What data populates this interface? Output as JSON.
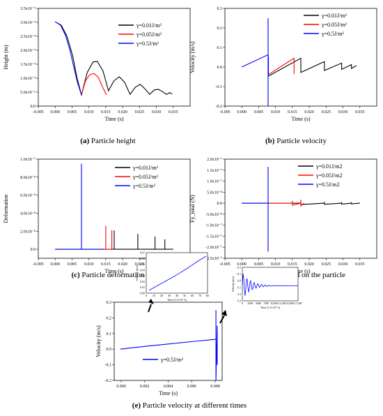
{
  "chart_data": [
    {
      "type": "line",
      "caption_letter": "(a)",
      "caption_text": " Particle height",
      "xlabel": "Time (s)",
      "ylabel": "Height (m)",
      "xlim": [
        -0.005,
        0.04
      ],
      "ylim": [
        0,
        0.00035
      ],
      "xticks": [
        "-0.005",
        "0.000",
        "0.005",
        "0.010",
        "0.015",
        "0.020",
        "0.025",
        "0.030",
        "0.035"
      ],
      "yticks": [
        "0.0",
        "5.0x10⁻⁵",
        "1.0x10⁻⁴",
        "1.5x10⁻⁴",
        "2.0x10⁻⁴",
        "2.5x10⁻⁴",
        "3.0x10⁻⁴",
        "3.5x10⁻⁴"
      ],
      "series": [
        {
          "name": "γ=0.01J/m²",
          "color": "#000000",
          "x": [
            0.0,
            0.0018,
            0.0035,
            0.0052,
            0.0065,
            0.0078,
            0.0095,
            0.0112,
            0.0125,
            0.0142,
            0.0158,
            0.0174,
            0.019,
            0.0206,
            0.0222,
            0.0238,
            0.0252,
            0.0266,
            0.028,
            0.0294,
            0.0306,
            0.0318,
            0.033,
            0.034,
            0.0347
          ],
          "y": [
            0.000302,
            0.00029,
            0.00025,
            0.00018,
            0.0001,
            4e-05,
            0.00012,
            0.000158,
            0.00016,
            0.000125,
            5.5e-05,
            9e-05,
            0.000105,
            8.5e-05,
            4.2e-05,
            6.8e-05,
            7.8e-05,
            6.2e-05,
            4.2e-05,
            5.8e-05,
            6e-05,
            5.2e-05,
            4.2e-05,
            4.8e-05,
            4.3e-05
          ]
        },
        {
          "name": "γ=0.05J/m²",
          "color": "#ff0000",
          "x": [
            0.0078,
            0.009,
            0.0102,
            0.0115,
            0.0128,
            0.014,
            0.0152
          ],
          "y": [
            4e-05,
            9e-05,
            0.000112,
            0.000117,
            0.000103,
            7e-05,
            4e-05
          ]
        },
        {
          "name": "γ=0.5J/m²",
          "color": "#0000ff",
          "x": [
            0.0,
            0.0016,
            0.003,
            0.0044,
            0.0056,
            0.0066,
            0.0078
          ],
          "y": [
            0.000302,
            0.00029,
            0.000255,
            0.0002,
            0.000135,
            8.5e-05,
            4e-05
          ]
        }
      ]
    },
    {
      "type": "line",
      "caption_letter": "(b)",
      "caption_text": " Particle velocity",
      "xlabel": "Time (s)",
      "ylabel": "Velocity (m/s)",
      "xlim": [
        -0.005,
        0.04
      ],
      "ylim": [
        -0.2,
        0.3
      ],
      "xticks": [
        "-0.005",
        "0.000",
        "0.005",
        "0.010",
        "0.015",
        "0.020",
        "0.025",
        "0.030",
        "0.035"
      ],
      "yticks": [
        "-0.2",
        "-0.1",
        "0.0",
        "0.1",
        "0.2",
        "0.3"
      ],
      "series": [
        {
          "name": "γ=0.01J/m²",
          "color": "#000000",
          "x": [
            0.0078,
            0.0175,
            0.0175,
            0.0245,
            0.0245,
            0.0296,
            0.0296,
            0.0325,
            0.0325,
            0.034
          ],
          "y": [
            -0.048,
            0.045,
            -0.028,
            0.028,
            -0.018,
            0.02,
            -0.012,
            0.012,
            -0.008,
            0.008
          ]
        },
        {
          "name": "γ=0.05J/m²",
          "color": "#ff0000",
          "x": [
            0.0078,
            0.0155,
            0.0155
          ],
          "y": [
            -0.04,
            0.045,
            -0.035
          ]
        },
        {
          "name": "γ=0.5J/m²",
          "color": "#0000ff",
          "x": [
            0.0,
            0.0078,
            0.0078,
            0.0078,
            0.0078,
            0.0079,
            0.0079
          ],
          "y": [
            0.0,
            0.063,
            0.25,
            -0.2,
            0.063,
            0.05,
            -0.04
          ]
        }
      ]
    },
    {
      "type": "line",
      "caption_letter": "(c)",
      "caption_text": " Particle deformation",
      "xlabel": "Time (s)",
      "ylabel": "Deformation",
      "xlim": [
        -0.005,
        0.04
      ],
      "ylim": [
        -1e-08,
        1e-07
      ],
      "xticks": [
        "-0.005",
        "0.000",
        "0.005",
        "0.010",
        "0.015",
        "0.020",
        "0.025",
        "0.030",
        "0.035"
      ],
      "yticks": [
        "0.0",
        "2.0x10⁻⁸",
        "4.0x10⁻⁸",
        "6.0x10⁻⁸",
        "8.0x10⁻⁸",
        "1.0x10⁻⁷"
      ],
      "series": [
        {
          "name": "γ=0.01J/m²",
          "color": "#000000",
          "x": [
            0.0,
            0.0175,
            0.0175,
            0.0175,
            0.0245,
            0.0245,
            0.0245,
            0.0296,
            0.0296,
            0.0296,
            0.0325,
            0.0325,
            0.0325,
            0.035
          ],
          "y": [
            0,
            0,
            2.1e-08,
            0,
            0,
            1.7e-08,
            0,
            0,
            1.4e-08,
            0,
            0,
            1.1e-08,
            0,
            0
          ]
        },
        {
          "name": "γ=0.05J/m²",
          "color": "#ff0000",
          "x": [
            0.0145,
            0.015,
            0.015,
            0.015,
            0.0168,
            0.0168,
            0.0168,
            0.017
          ],
          "y": [
            0,
            0,
            2.6e-08,
            0,
            0,
            2.1e-08,
            0,
            0
          ]
        },
        {
          "name": "γ=0.5J/m²",
          "color": "#0000ff",
          "x": [
            0.0,
            0.0078,
            0.0078,
            0.0078,
            0.0145
          ],
          "y": [
            0,
            0,
            9.5e-08,
            0,
            0
          ]
        }
      ]
    },
    {
      "type": "line",
      "caption_letter": "(d)",
      "caption_text": " Force exerted on the particle",
      "xlabel": "Time (s)",
      "ylabel": "Fy_total (N)",
      "xlim": [
        -0.005,
        0.04
      ],
      "ylim": [
        -2.5e-07,
        2e-07
      ],
      "xticks": [
        "-0.005",
        "0.000",
        "0.005",
        "0.010",
        "0.015",
        "0.020",
        "0.025",
        "0.030",
        "0.035"
      ],
      "yticks": [
        "-2.5x10⁻⁷",
        "-2.0x10⁻⁷",
        "-1.5x10⁻⁷",
        "-1.0x10⁻⁷",
        "-5.0x10⁻⁸",
        "0.0",
        "5.0x10⁻⁸",
        "1.0x10⁻⁷",
        "1.5x10⁻⁷",
        "2.0x10⁻⁷"
      ],
      "series": [
        {
          "name": "γ=0.01J/m2",
          "color": "#000000",
          "x": [
            0.0,
            0.0175,
            0.0175,
            0.0175,
            0.0245,
            0.0245,
            0.0245,
            0.0296,
            0.0296,
            0.0296,
            0.0325,
            0.0325,
            0.0325,
            0.035
          ],
          "y": [
            0,
            0,
            8e-09,
            -6e-09,
            0,
            6e-09,
            -5e-09,
            0,
            5e-09,
            -4e-09,
            0,
            4e-09,
            -3e-09,
            0
          ]
        },
        {
          "name": "γ=0.05J/m2",
          "color": "#ff0000",
          "x": [
            0.0078,
            0.015,
            0.015,
            0.015,
            0.0175,
            0.0175,
            0.0175,
            0.0185
          ],
          "y": [
            0,
            0,
            1.1e-08,
            -9e-09,
            0,
            1.6e-08,
            -1.2e-08,
            0
          ]
        },
        {
          "name": "γ=0.5J/m2",
          "color": "#0000ff",
          "x": [
            0.0,
            0.0078,
            0.0078,
            0.0078,
            0.0078
          ],
          "y": [
            0,
            0,
            1.65e-07,
            -2.2e-07,
            0
          ]
        }
      ]
    },
    {
      "type": "line",
      "caption_letter": "(e)",
      "caption_text": " Particle velocity at different times",
      "xlabel": "Time (s)",
      "ylabel": "Velocity (m/s)",
      "xlim": [
        -0.0005,
        0.0082
      ],
      "ylim": [
        -0.2,
        0.3
      ],
      "xticks": [
        "0.000",
        "0.002",
        "0.004",
        "0.006",
        "0.008"
      ],
      "yticks": [
        "-0.2",
        "-0.1",
        "0.0",
        "0.1",
        "0.2",
        "0.3"
      ],
      "series": [
        {
          "name": "γ=0.5J/m²",
          "color": "#0000ff",
          "x": [
            0.0,
            0.002,
            0.004,
            0.006,
            0.0077,
            0.0077,
            0.0077,
            0.0078,
            0.0078,
            0.0078
          ],
          "y": [
            0.0,
            0.018,
            0.034,
            0.05,
            0.063,
            0.25,
            -0.2,
            0.15,
            -0.1,
            0.05
          ]
        }
      ],
      "inset_left": {
        "xlabel": "Time (1.0×10⁻³s)",
        "ylabel": "Velocity (m/s)",
        "xticks": [
          "0",
          "10",
          "20",
          "30",
          "40",
          "50",
          "60",
          "70",
          "80"
        ],
        "yticks": [
          "0.00",
          "0.01",
          "0.02",
          "0.03",
          "0.04",
          "0.05",
          "0.06",
          "0.07"
        ]
      },
      "inset_right": {
        "xlabel": "Time (1.0×10⁻³s)",
        "ylabel": "Velocity (m/s)",
        "xticks": [
          "0",
          "2500",
          "5000",
          "7500",
          "10,000",
          "12,500",
          "15,000",
          "17,500"
        ],
        "yticks": [
          "0.3",
          "0.2",
          "0.1",
          "0.0",
          "-0.1",
          "-0.2"
        ]
      }
    }
  ]
}
